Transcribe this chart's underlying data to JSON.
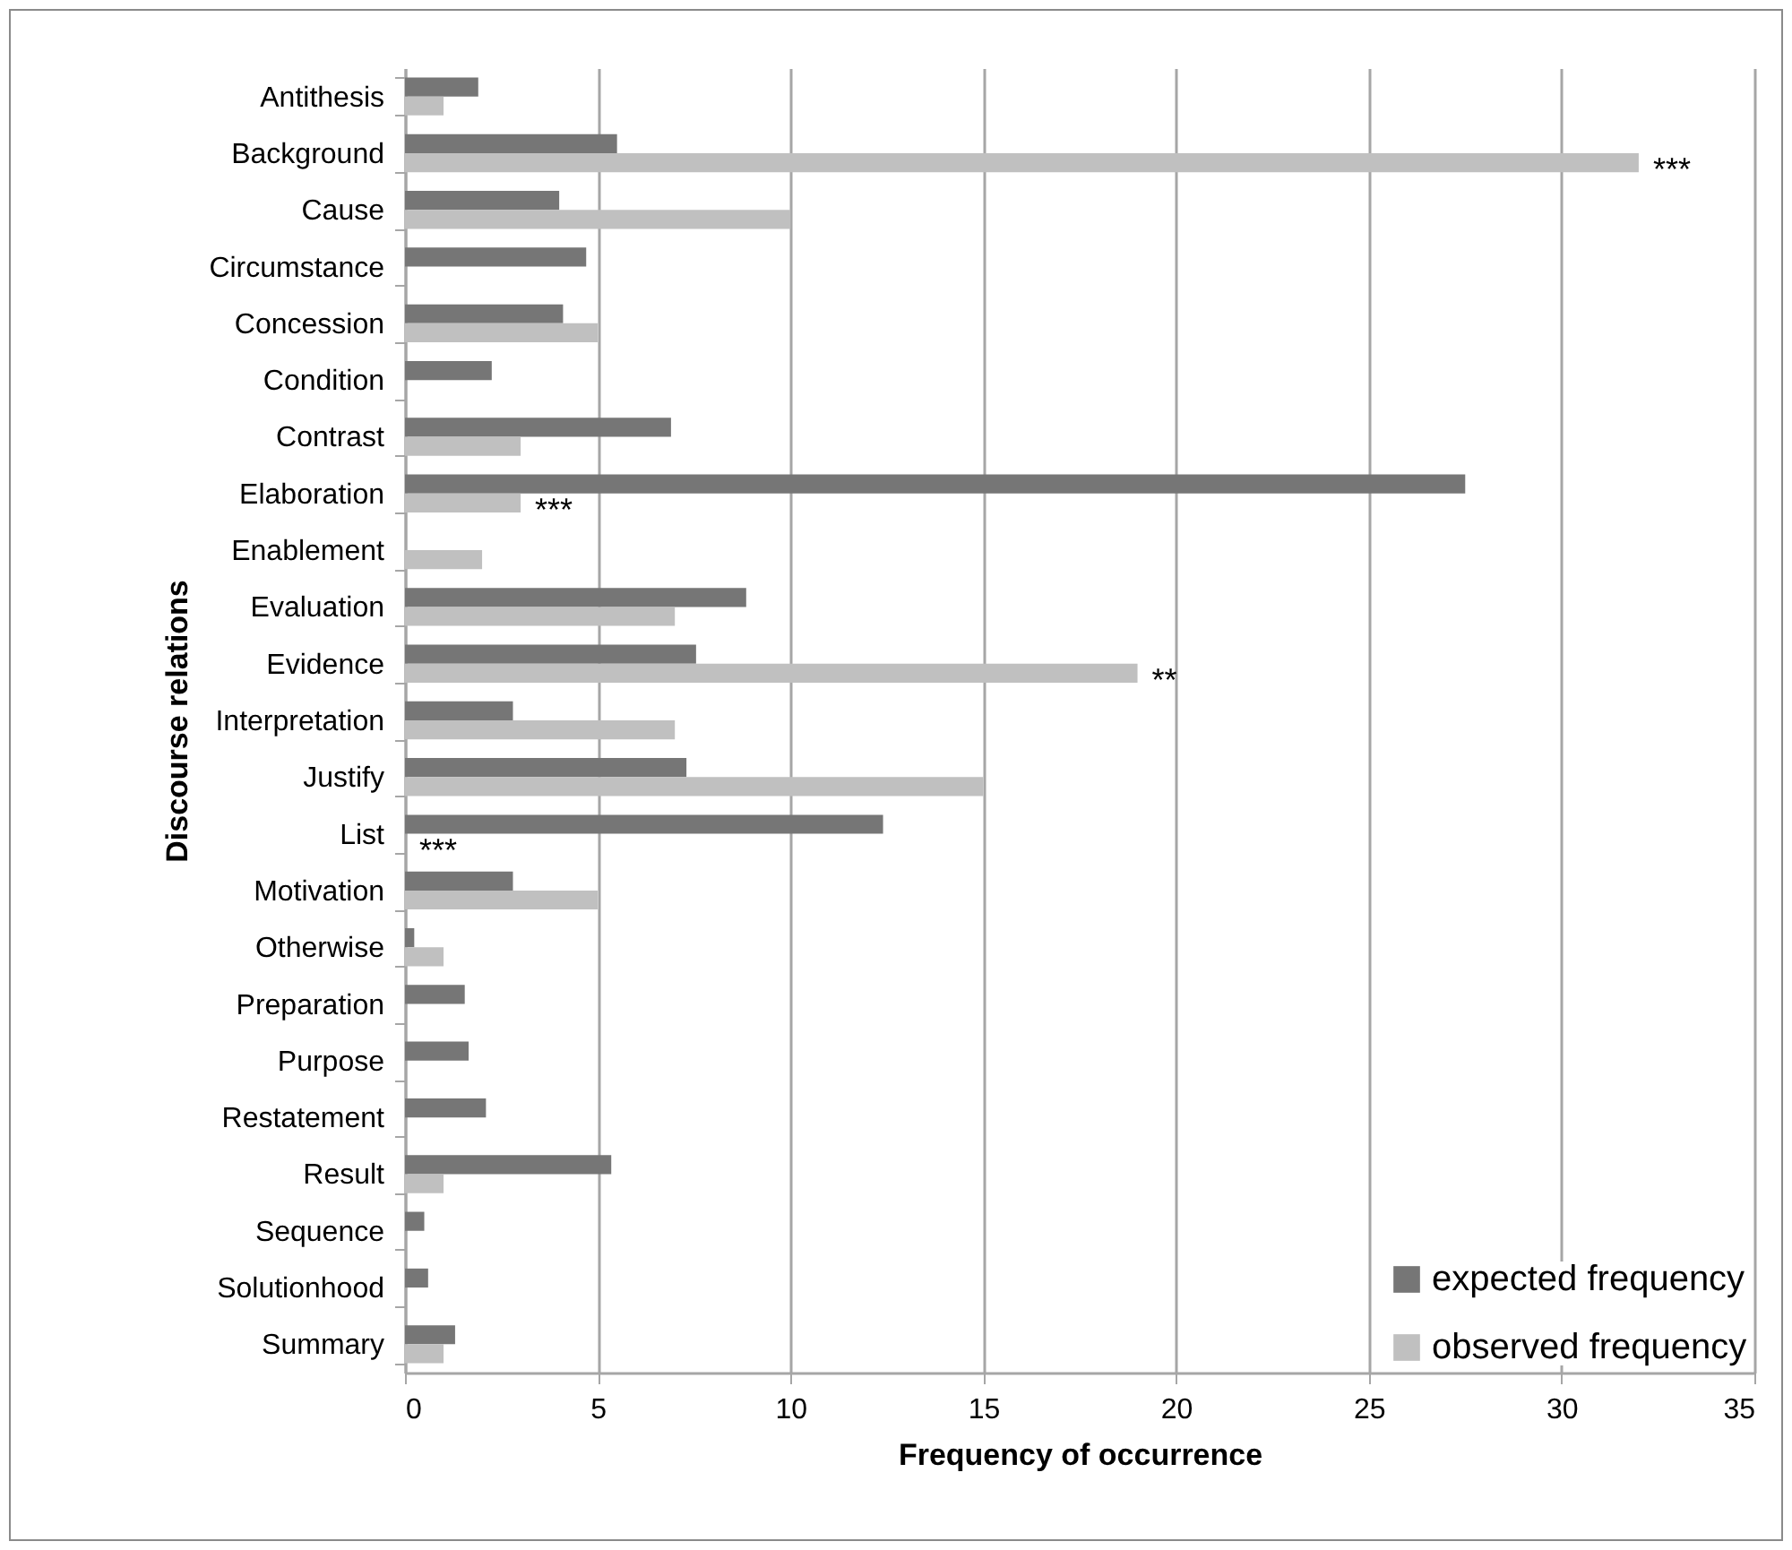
{
  "chart_data": {
    "type": "bar",
    "orientation": "horizontal",
    "xlabel": "Frequency of occurrence",
    "ylabel": "Discourse relations",
    "categories": [
      "Antithesis",
      "Background",
      "Cause",
      "Circumstance",
      "Concession",
      "Condition",
      "Contrast",
      "Elaboration",
      "Enablement",
      "Evaluation",
      "Evidence",
      "Interpretation",
      "Justify",
      "List",
      "Motivation",
      "Otherwise",
      "Preparation",
      "Purpose",
      "Restatement",
      "Result",
      "Sequence",
      "Solutionhood",
      "Summary"
    ],
    "series": [
      {
        "name": "expected frequency",
        "color": "#767676",
        "values": [
          1.9,
          5.5,
          4.0,
          4.7,
          4.1,
          2.25,
          6.9,
          27.5,
          null,
          8.85,
          7.55,
          2.8,
          7.3,
          12.4,
          2.8,
          0.24,
          1.55,
          1.65,
          2.1,
          5.35,
          0.5,
          0.6,
          1.3
        ]
      },
      {
        "name": "observed frequency",
        "color": "#c0c0c0",
        "values": [
          1,
          32,
          10,
          null,
          5,
          null,
          3,
          3,
          2,
          7,
          19,
          7,
          15,
          null,
          5,
          1,
          null,
          null,
          null,
          1,
          null,
          null,
          1
        ]
      }
    ],
    "xlim": [
      0,
      35
    ],
    "xticks": [
      0,
      5,
      10,
      15,
      20,
      25,
      30,
      35
    ],
    "grid": "x",
    "legend": "bottom right",
    "annotations": [
      {
        "text": "***",
        "x": 32,
        "y": "Background"
      },
      {
        "text": "***",
        "x": 3,
        "y": "Elaboration"
      },
      {
        "text": "**",
        "x": 19,
        "y": "Evidence"
      },
      {
        "text": "***",
        "x": 0,
        "y": "List"
      }
    ]
  }
}
